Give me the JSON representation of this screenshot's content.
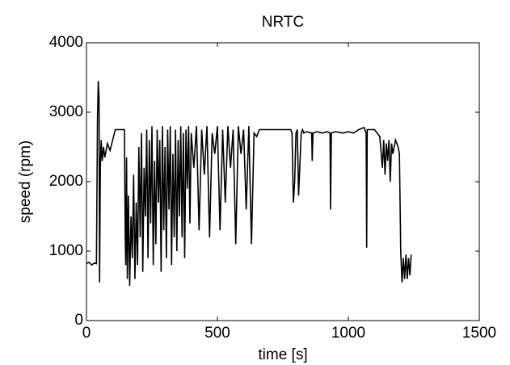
{
  "chart_data": {
    "type": "line",
    "title": "NRTC",
    "x_label": "time [s]",
    "y_label": "speed (rpm)",
    "x": [
      0,
      10,
      20,
      30,
      38,
      42,
      45,
      48,
      50,
      53,
      56,
      60,
      65,
      70,
      80,
      90,
      100,
      110,
      120,
      130,
      140,
      145,
      148,
      150,
      153,
      156,
      160,
      165,
      170,
      175,
      180,
      185,
      190,
      195,
      200,
      205,
      210,
      215,
      220,
      225,
      230,
      235,
      240,
      245,
      250,
      255,
      260,
      265,
      270,
      275,
      280,
      285,
      290,
      295,
      300,
      305,
      310,
      315,
      320,
      325,
      330,
      335,
      340,
      345,
      350,
      355,
      360,
      365,
      370,
      375,
      380,
      385,
      390,
      395,
      400,
      410,
      420,
      430,
      440,
      450,
      460,
      470,
      480,
      490,
      500,
      510,
      520,
      530,
      540,
      550,
      560,
      570,
      580,
      590,
      600,
      610,
      620,
      630,
      640,
      650,
      660,
      680,
      700,
      720,
      740,
      760,
      780,
      785,
      790,
      795,
      800,
      805,
      810,
      820,
      825,
      830,
      840,
      860,
      862,
      865,
      880,
      900,
      920,
      930,
      932,
      935,
      950,
      980,
      1000,
      1020,
      1040,
      1060,
      1068,
      1070,
      1072,
      1080,
      1100,
      1120,
      1130,
      1135,
      1140,
      1145,
      1150,
      1155,
      1160,
      1165,
      1170,
      1180,
      1190,
      1195,
      1200,
      1205,
      1210,
      1215,
      1220,
      1225,
      1230,
      1235,
      1240
    ],
    "values": [
      820,
      840,
      800,
      830,
      820,
      2900,
      3450,
      3200,
      550,
      2200,
      2600,
      2300,
      2500,
      2350,
      2550,
      2450,
      2600,
      2750,
      2750,
      2750,
      2750,
      2750,
      1200,
      800,
      2350,
      600,
      1800,
      500,
      1500,
      900,
      2100,
      600,
      1700,
      800,
      2500,
      1200,
      2700,
      700,
      2200,
      1500,
      2750,
      900,
      2600,
      1400,
      2800,
      800,
      2300,
      1100,
      2750,
      1700,
      2600,
      700,
      2800,
      1300,
      2500,
      900,
      2750,
      1600,
      2800,
      800,
      2400,
      1200,
      2750,
      1000,
      2600,
      1500,
      2800,
      1200,
      2700,
      900,
      2750,
      1900,
      2800,
      1400,
      2700,
      2200,
      2800,
      1300,
      2750,
      2100,
      2800,
      1200,
      2700,
      2400,
      2800,
      1300,
      2750,
      1700,
      2800,
      2200,
      2750,
      1100,
      2800,
      2400,
      2750,
      1600,
      2800,
      1100,
      2700,
      2650,
      2750,
      2750,
      2750,
      2750,
      2750,
      2750,
      2750,
      2700,
      1700,
      2000,
      2700,
      2750,
      1800,
      2700,
      2750,
      2700,
      2720,
      2700,
      2300,
      2700,
      2720,
      2700,
      2720,
      2700,
      1600,
      2700,
      2720,
      2700,
      2720,
      2700,
      2750,
      2780,
      2700,
      1050,
      2750,
      2750,
      2750,
      2650,
      2200,
      2600,
      2100,
      2550,
      2300,
      2600,
      2000,
      2550,
      2400,
      2600,
      2500,
      2400,
      1000,
      550,
      900,
      600,
      950,
      600,
      900,
      650,
      950
    ],
    "color": "#000000",
    "xlim": [
      0,
      1500
    ],
    "xticks": [
      0,
      500,
      1000,
      1500
    ],
    "ylim": [
      0,
      4000
    ],
    "yticks": [
      0,
      1000,
      2000,
      3000,
      4000
    ]
  }
}
